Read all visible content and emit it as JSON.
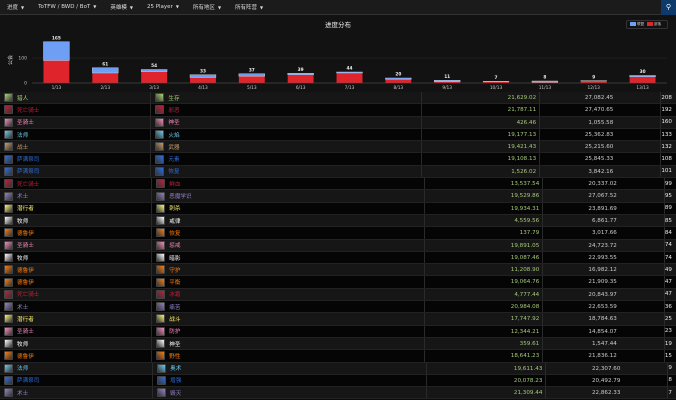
{
  "nav": {
    "items": [
      "进度",
      "ToTFW / BWD / BoT",
      "英雄模",
      "25 Player",
      "所有地区",
      "所有阵营"
    ],
    "search_icon": "search-icon"
  },
  "chart_data": {
    "type": "bar",
    "stacked": true,
    "title": "进度分布",
    "ylabel": "公会",
    "ylim": [
      0,
      180
    ],
    "yticks": [
      0,
      100
    ],
    "categories": [
      "1/13",
      "2/13",
      "3/13",
      "4/13",
      "5/13",
      "6/13",
      "7/13",
      "8/13",
      "9/13",
      "10/13",
      "11/13",
      "12/13",
      "13/13"
    ],
    "totals": [
      165,
      61,
      54,
      33,
      37,
      39,
      44,
      20,
      11,
      7,
      8,
      9,
      30
    ],
    "series": [
      {
        "name": "联盟",
        "color": "#6f9ef5",
        "values": [
          75,
          21,
          9,
          11,
          10,
          6,
          4,
          5,
          6,
          1,
          5,
          1,
          5
        ]
      },
      {
        "name": "部落",
        "color": "#e0242c",
        "values": [
          90,
          40,
          45,
          22,
          27,
          33,
          40,
          15,
          5,
          6,
          3,
          8,
          25
        ]
      }
    ],
    "legend": "top-right",
    "grid": true
  },
  "class_colors": {
    "猎人": "#abd473",
    "死亡骑士": "#c41f3b",
    "圣骑士": "#f58cba",
    "法师": "#69ccf0",
    "战士": "#c79c6e",
    "萨满祭司": "#2f6fe0",
    "术士": "#9482c9",
    "潜行者": "#fff569",
    "牧师": "#ffffff",
    "德鲁伊": "#ff7d0a"
  },
  "rows": [
    {
      "cls": "猎人",
      "spec": "生存",
      "a": "21,629.02",
      "b": "27,082.45",
      "n": "208"
    },
    {
      "cls": "死亡骑士",
      "spec": "邪恶",
      "a": "21,787.11",
      "b": "27,470.65",
      "n": "192"
    },
    {
      "cls": "圣骑士",
      "spec": "神圣",
      "a": "426.46",
      "b": "1,055.58",
      "n": "160"
    },
    {
      "cls": "法师",
      "spec": "火焰",
      "a": "19,177.13",
      "b": "25,362.83",
      "n": "133"
    },
    {
      "cls": "战士",
      "spec": "武器",
      "a": "19,421.43",
      "b": "25,215.60",
      "n": "132"
    },
    {
      "cls": "萨满祭司",
      "spec": "元素",
      "a": "19,108.13",
      "b": "25,845.33",
      "n": "108"
    },
    {
      "cls": "萨满祭司",
      "spec": "恢复",
      "a": "1,526.02",
      "b": "3,842.16",
      "n": "101"
    },
    {
      "cls": "死亡骑士",
      "spec": "鲜血",
      "a": "13,537.54",
      "b": "20,337.02",
      "n": "99"
    },
    {
      "cls": "术士",
      "spec": "恶魔学识",
      "a": "19,529.86",
      "b": "27,067.52",
      "n": "95"
    },
    {
      "cls": "潜行者",
      "spec": "刺杀",
      "a": "19,934.31",
      "b": "23,891.69",
      "n": "89"
    },
    {
      "cls": "牧师",
      "spec": "戒律",
      "a": "4,559.56",
      "b": "6,861.77",
      "n": "85"
    },
    {
      "cls": "德鲁伊",
      "spec": "恢复",
      "a": "137.79",
      "b": "3,017.66",
      "n": "84"
    },
    {
      "cls": "圣骑士",
      "spec": "惩戒",
      "a": "19,891.05",
      "b": "24,723.72",
      "n": "74"
    },
    {
      "cls": "牧师",
      "spec": "暗影",
      "a": "19,087.46",
      "b": "22,993.55",
      "n": "74"
    },
    {
      "cls": "德鲁伊",
      "spec": "守护",
      "a": "11,208.90",
      "b": "16,982.12",
      "n": "49"
    },
    {
      "cls": "德鲁伊",
      "spec": "平衡",
      "a": "19,064.76",
      "b": "21,909.35",
      "n": "47"
    },
    {
      "cls": "死亡骑士",
      "spec": "冰霜",
      "a": "4,777.44",
      "b": "20,843.97",
      "n": "47"
    },
    {
      "cls": "术士",
      "spec": "痛苦",
      "a": "20,984.08",
      "b": "22,653.59",
      "n": "36"
    },
    {
      "cls": "潜行者",
      "spec": "战斗",
      "a": "17,747.92",
      "b": "18,784.63",
      "n": "25"
    },
    {
      "cls": "圣骑士",
      "spec": "防护",
      "a": "12,344.21",
      "b": "14,854.07",
      "n": "23"
    },
    {
      "cls": "牧师",
      "spec": "神圣",
      "a": "359.61",
      "b": "1,547.44",
      "n": "19"
    },
    {
      "cls": "德鲁伊",
      "spec": "野性",
      "a": "18,641.23",
      "b": "21,836.12",
      "n": "15"
    },
    {
      "cls": "法师",
      "spec": "奥术",
      "a": "19,611.43",
      "b": "22,307.60",
      "n": "9"
    },
    {
      "cls": "萨满祭司",
      "spec": "增强",
      "a": "20,078.23",
      "b": "20,492.79",
      "n": "8"
    },
    {
      "cls": "术士",
      "spec": "毁灭",
      "a": "21,309.44",
      "b": "22,862.33",
      "n": "7"
    }
  ]
}
